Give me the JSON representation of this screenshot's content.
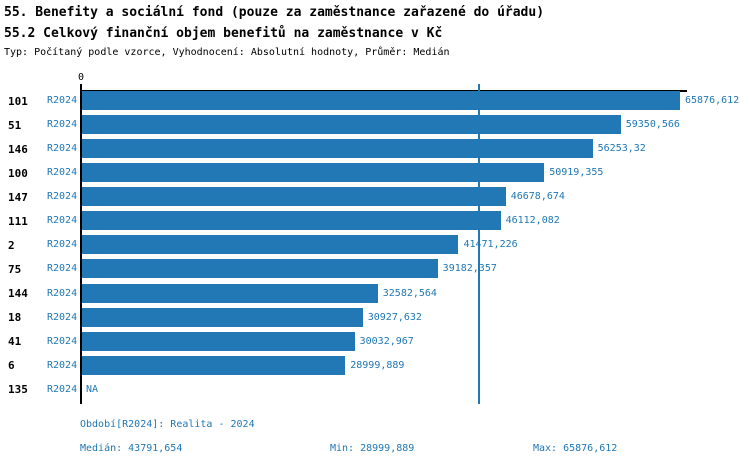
{
  "header": {
    "title_line1": "55. Benefity a sociální fond (pouze za zaměstnance zařazené do úřadu)",
    "title_line2": "55.2 Celkový finanční objem benefitů na zaměstnance v Kč",
    "subtitle": "Typ: Počítaný podle vzorce, Vyhodnocení: Absolutní hodnoty, Průměr: Medián"
  },
  "chart_data": {
    "type": "bar",
    "orientation": "horizontal",
    "series_name": "R2024",
    "categories": [
      "101",
      "51",
      "146",
      "100",
      "147",
      "111",
      "2",
      "75",
      "144",
      "18",
      "41",
      "6",
      "135"
    ],
    "values": [
      65876.612,
      59350.566,
      56253.32,
      50919.355,
      46678.674,
      46112.082,
      41471.226,
      39182.357,
      32582.564,
      30927.632,
      30032.967,
      28999.889,
      null
    ],
    "value_labels": [
      "65876,612",
      "59350,566",
      "56253,32",
      "50919,355",
      "46678,674",
      "46112,082",
      "41471,226",
      "39182,357",
      "32582,564",
      "30927,632",
      "30032,967",
      "28999,889",
      "NA"
    ],
    "na_label": "NA",
    "zero_tick_label": "0",
    "xlim": [
      0,
      66500
    ],
    "median_value": 43791.654,
    "grid": false,
    "legend": false,
    "bar_color": "#2277b5",
    "text_accent_color": "#1f77b4",
    "axis_color": "#000000"
  },
  "footer": {
    "period": "Období[R2024]: Realita - 2024",
    "median": "Medián: 43791,654",
    "min": "Min: 28999,889",
    "max": "Max: 65876,612"
  }
}
